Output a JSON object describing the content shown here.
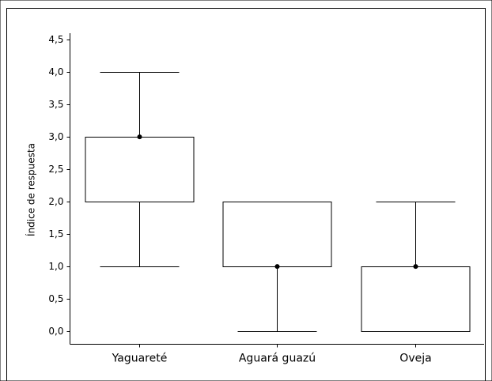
{
  "chart_data": {
    "type": "box",
    "y_label": "Índice de respuesta",
    "categories": [
      "Yaguareté",
      "Aguará guazú",
      "Oveja"
    ],
    "boxes": [
      {
        "whisker_low": 1,
        "q1": 2,
        "median": 3,
        "q3": 3,
        "whisker_high": 4
      },
      {
        "whisker_low": 0,
        "q1": 1,
        "median": 1,
        "q3": 2,
        "whisker_high": 2
      },
      {
        "whisker_low": 0,
        "q1": 0,
        "median": 1,
        "q3": 1,
        "whisker_high": 2
      }
    ],
    "color": "#000000",
    "ylim": [
      -0.2,
      4.6
    ],
    "yticks": [
      {
        "value": 0,
        "label": "0,0"
      },
      {
        "value": 0.5,
        "label": "0,5"
      },
      {
        "value": 1,
        "label": "1,0"
      },
      {
        "value": 1.5,
        "label": "1,5"
      },
      {
        "value": 2,
        "label": "2,0"
      },
      {
        "value": 2.5,
        "label": "2,5"
      },
      {
        "value": 3,
        "label": "3,0"
      },
      {
        "value": 3.5,
        "label": "3,5"
      },
      {
        "value": 4,
        "label": "4,0"
      },
      {
        "value": 4.5,
        "label": "4,5"
      }
    ]
  }
}
